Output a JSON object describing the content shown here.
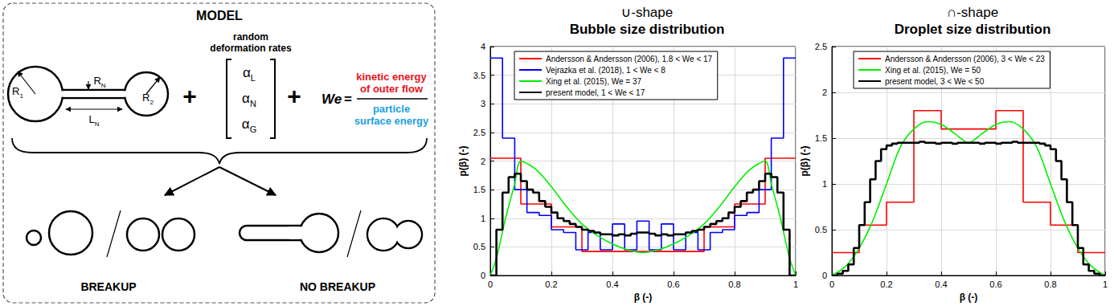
{
  "diagram": {
    "title": "MODEL",
    "particle_labels": [
      {
        "text": "R",
        "sub": "1"
      },
      {
        "text": "R",
        "sub": "N"
      },
      {
        "text": "L",
        "sub": "N"
      },
      {
        "text": "R",
        "sub": "2"
      }
    ],
    "plus": "+",
    "rates_title": [
      "random",
      "deformation rates"
    ],
    "rates": [
      {
        "text": "α",
        "sub": "L"
      },
      {
        "text": "α",
        "sub": "N"
      },
      {
        "text": "α",
        "sub": "G"
      }
    ],
    "weber": {
      "symbol": "We",
      "equals": "=",
      "numerator": {
        "lines": [
          "kinetic energy",
          "of outer flow"
        ],
        "color": "#e8141c"
      },
      "denominator": {
        "lines": [
          "particle",
          "surface energy"
        ],
        "color": "#1b9fe0"
      }
    },
    "outcomes": [
      "BREAKUP",
      "NO BREAKUP"
    ]
  },
  "chart_data": [
    {
      "type": "histogram",
      "title": "∪-shape",
      "subtitle": "Bubble size distribution",
      "xlabel": "β (-)",
      "ylabel": "p(β) (-)",
      "xlim": [
        0,
        1
      ],
      "xticks": [
        0,
        0.2,
        0.4,
        0.6,
        0.8,
        1
      ],
      "ylim": [
        0,
        4
      ],
      "yticks": [
        0,
        0.5,
        1,
        1.5,
        2,
        2.5,
        3,
        3.5,
        4
      ],
      "grid": true,
      "legend": "upper left",
      "series": [
        {
          "name": "Andersson & Andersson (2006), 1.8 < We < 17",
          "type": "histogram",
          "color": "#ff0000",
          "bins": [
            0,
            0.1,
            0.2,
            0.3,
            0.4,
            0.5,
            0.6,
            0.7,
            0.8,
            0.9,
            1
          ],
          "values": [
            2.05,
            1.25,
            0.85,
            0.42,
            0.42,
            0.42,
            0.42,
            0.85,
            1.25,
            2.05
          ]
        },
        {
          "name": "Vejrazka et al. (2018), 1 < We < 8",
          "type": "histogram",
          "color": "#0000ff",
          "bins": [
            0,
            0.04,
            0.08,
            0.12,
            0.16,
            0.2,
            0.24,
            0.28,
            0.32,
            0.36,
            0.4,
            0.44,
            0.48,
            0.52,
            0.56,
            0.6,
            0.64,
            0.68,
            0.72,
            0.76,
            0.8,
            0.84,
            0.88,
            0.92,
            0.96,
            1
          ],
          "values": [
            3.8,
            2.4,
            1.5,
            1.1,
            1.05,
            0.8,
            0.75,
            0.45,
            0.75,
            0.45,
            0.9,
            0.45,
            0.95,
            0.45,
            0.9,
            0.45,
            0.75,
            0.45,
            0.75,
            0.8,
            1.05,
            1.1,
            1.5,
            2.4,
            3.8
          ]
        },
        {
          "name": "Xing et al. (2015), We = 37",
          "type": "line",
          "color": "#00ee00",
          "x": [
            0,
            0.02,
            0.05,
            0.08,
            0.1,
            0.15,
            0.2,
            0.25,
            0.3,
            0.35,
            0.4,
            0.45,
            0.5,
            0.55,
            0.6,
            0.65,
            0.7,
            0.75,
            0.8,
            0.85,
            0.9,
            0.92,
            0.95,
            0.98,
            1
          ],
          "values": [
            0,
            0.3,
            1.0,
            1.6,
            2.0,
            1.85,
            1.55,
            1.2,
            0.9,
            0.7,
            0.55,
            0.45,
            0.4,
            0.45,
            0.55,
            0.7,
            0.9,
            1.2,
            1.55,
            1.85,
            2.0,
            1.6,
            1.0,
            0.3,
            0
          ]
        },
        {
          "name": "present model, 1 < We < 17",
          "type": "histogram",
          "color": "#000000",
          "bins": [
            0,
            0.02,
            0.04,
            0.06,
            0.08,
            0.1,
            0.12,
            0.14,
            0.16,
            0.18,
            0.2,
            0.22,
            0.24,
            0.26,
            0.28,
            0.3,
            0.32,
            0.34,
            0.36,
            0.38,
            0.4,
            0.42,
            0.44,
            0.46,
            0.48,
            0.5,
            0.52,
            0.54,
            0.56,
            0.58,
            0.6,
            0.62,
            0.64,
            0.66,
            0.68,
            0.7,
            0.72,
            0.74,
            0.76,
            0.78,
            0.8,
            0.82,
            0.84,
            0.86,
            0.88,
            0.9,
            0.92,
            0.94,
            0.96,
            0.98,
            1
          ],
          "values": [
            0,
            0.8,
            1.45,
            1.72,
            1.78,
            1.65,
            1.5,
            1.45,
            1.3,
            1.2,
            1.1,
            1.0,
            0.95,
            0.9,
            0.85,
            0.8,
            0.78,
            0.75,
            0.72,
            0.72,
            0.7,
            0.72,
            0.7,
            0.73,
            0.75,
            0.75,
            0.73,
            0.7,
            0.72,
            0.7,
            0.72,
            0.72,
            0.75,
            0.78,
            0.8,
            0.85,
            0.9,
            0.95,
            1.0,
            1.1,
            1.2,
            1.3,
            1.45,
            1.5,
            1.65,
            1.78,
            1.72,
            1.45,
            0.8,
            0
          ]
        }
      ]
    },
    {
      "type": "histogram",
      "title": "∩-shape",
      "subtitle": "Droplet size distribution",
      "xlabel": "β (-)",
      "ylabel": "p(β) (-)",
      "xlim": [
        0,
        1
      ],
      "xticks": [
        0,
        0.2,
        0.4,
        0.6,
        0.8,
        1
      ],
      "ylim": [
        0,
        2.5
      ],
      "yticks": [
        0,
        0.5,
        1,
        1.5,
        2,
        2.5
      ],
      "grid": true,
      "legend": "upper left",
      "series": [
        {
          "name": "Andersson & Andersson (2006), 3 < We < 23",
          "type": "histogram",
          "color": "#ff0000",
          "bins": [
            0,
            0.1,
            0.2,
            0.3,
            0.4,
            0.5,
            0.6,
            0.7,
            0.8,
            0.9,
            1
          ],
          "values": [
            0.25,
            0.55,
            0.8,
            1.8,
            1.6,
            1.6,
            1.8,
            0.8,
            0.55,
            0.25
          ]
        },
        {
          "name": "Xing et al. (2015), We = 50",
          "type": "line",
          "color": "#00ee00",
          "x": [
            0,
            0.05,
            0.1,
            0.15,
            0.2,
            0.25,
            0.3,
            0.35,
            0.4,
            0.45,
            0.5,
            0.55,
            0.6,
            0.65,
            0.7,
            0.75,
            0.8,
            0.85,
            0.9,
            0.95,
            1
          ],
          "values": [
            0,
            0.1,
            0.3,
            0.6,
            1.0,
            1.4,
            1.6,
            1.68,
            1.65,
            1.55,
            1.45,
            1.55,
            1.65,
            1.68,
            1.6,
            1.4,
            1.0,
            0.6,
            0.3,
            0.1,
            0
          ]
        },
        {
          "name": "present model, 3 < We < 50",
          "type": "histogram",
          "color": "#000000",
          "bins": [
            0,
            0.02,
            0.04,
            0.06,
            0.08,
            0.1,
            0.12,
            0.14,
            0.16,
            0.18,
            0.2,
            0.22,
            0.24,
            0.26,
            0.28,
            0.3,
            0.32,
            0.34,
            0.36,
            0.38,
            0.4,
            0.42,
            0.44,
            0.46,
            0.48,
            0.5,
            0.52,
            0.54,
            0.56,
            0.58,
            0.6,
            0.62,
            0.64,
            0.66,
            0.68,
            0.7,
            0.72,
            0.74,
            0.76,
            0.78,
            0.8,
            0.82,
            0.84,
            0.86,
            0.88,
            0.9,
            0.92,
            0.94,
            0.96,
            0.98,
            1
          ],
          "values": [
            0,
            0.02,
            0.05,
            0.12,
            0.3,
            0.55,
            0.8,
            1.05,
            1.25,
            1.38,
            1.42,
            1.44,
            1.45,
            1.45,
            1.45,
            1.45,
            1.46,
            1.45,
            1.45,
            1.44,
            1.45,
            1.45,
            1.44,
            1.45,
            1.45,
            1.45,
            1.45,
            1.44,
            1.45,
            1.45,
            1.44,
            1.45,
            1.45,
            1.46,
            1.45,
            1.45,
            1.45,
            1.45,
            1.44,
            1.42,
            1.38,
            1.25,
            1.05,
            0.8,
            0.55,
            0.3,
            0.12,
            0.05,
            0.02,
            0
          ]
        }
      ]
    }
  ]
}
